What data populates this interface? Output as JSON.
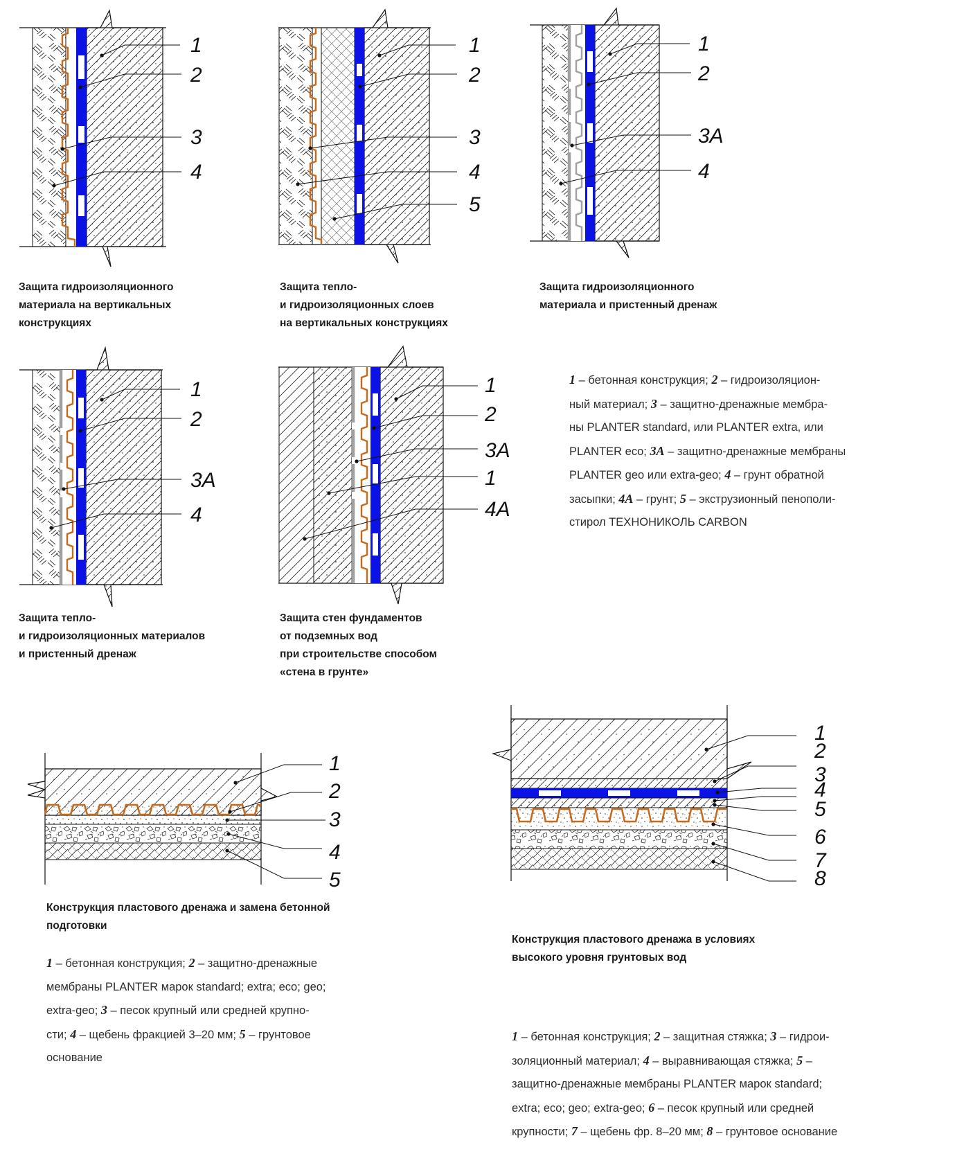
{
  "colors": {
    "waterproofing": "#0a12e6",
    "membrane": "#c76a1c",
    "drain_membrane": "#a0a0a0",
    "line": "#111111"
  },
  "fig1": {
    "labels": [
      "1",
      "2",
      "3",
      "4"
    ],
    "caption": [
      "Защита гидроизоляционного",
      "материала на вертикальных",
      "конструкциях"
    ]
  },
  "fig2": {
    "labels": [
      "1",
      "2",
      "3",
      "4",
      "5"
    ],
    "caption": [
      "Защита тепло-",
      "и гидроизоляционных слоев",
      "на вертикальных конструкциях"
    ]
  },
  "fig3": {
    "labels": [
      "1",
      "2",
      "3A",
      "4"
    ],
    "caption": [
      "Защита гидроизоляционного",
      "материала и пристенный дренаж"
    ]
  },
  "fig4": {
    "labels": [
      "1",
      "2",
      "3A",
      "4"
    ],
    "caption": [
      "Защита тепло-",
      "и гидроизоляционных материалов",
      "и пристенный дренаж"
    ]
  },
  "fig5": {
    "labels": [
      "1",
      "2",
      "3A",
      "1",
      "4A"
    ],
    "caption": [
      "Защита стен фундаментов",
      "от подземных вод",
      "при строительстве способом",
      "«стена в грунте»"
    ]
  },
  "legend_vertical": [
    {
      "n": "1",
      "t": " – бетонная конструкция; "
    },
    {
      "n": "2",
      "t": " – гидроизоляцион-"
    },
    {
      "t": "ный материал; "
    },
    {
      "n": "3",
      "t": " – защитно-дренажные мембра-"
    },
    {
      "t": "ны PLANTER standard, или PLANTER extra, или"
    },
    {
      "t": "PLANTER eco; "
    },
    {
      "n": "3А",
      "t": " – защитно-дренажные мембраны"
    },
    {
      "t": "PLANTER geo или extra-geo; "
    },
    {
      "n": "4",
      "t": " – грунт обратной"
    },
    {
      "t": "засыпки; "
    },
    {
      "n": "4А",
      "t": " – грунт; "
    },
    {
      "n": "5",
      "t": " – экструзионный пенополи-"
    },
    {
      "t": "стирол ТЕХНОНИКОЛЬ CARBON"
    }
  ],
  "fig6": {
    "labels": [
      "1",
      "2",
      "3",
      "4",
      "5"
    ],
    "caption": [
      "Конструкция пластового дренажа и замена бетонной",
      "подготовки"
    ],
    "legend": [
      {
        "n": "1",
        "t": " – бетонная конструкция; "
      },
      {
        "n": "2",
        "t": " – защитно-дренажные"
      },
      {
        "t": "мембраны PLANTER марок standard; extra; eco; geo;"
      },
      {
        "t": "extra-geo; "
      },
      {
        "n": "3",
        "t": " – песок крупный или средней крупно-"
      },
      {
        "t": "сти; "
      },
      {
        "n": "4",
        "t": " – щебень фракцией 3–20 мм; "
      },
      {
        "n": "5",
        "t": " – грунтовое"
      },
      {
        "t": "основание"
      }
    ]
  },
  "fig7": {
    "labels": [
      "1",
      "2",
      "3",
      "4",
      "5",
      "6",
      "7",
      "8"
    ],
    "caption": [
      "Конструкция пластового дренажа в условиях",
      "высокого уровня грунтовых вод"
    ],
    "legend": [
      {
        "n": "1",
        "t": " – бетонная конструкция; "
      },
      {
        "n": "2",
        "t": " – защитная стяжка; "
      },
      {
        "n": "3",
        "t": " – гидрои-"
      },
      {
        "t": "золяционный материал; "
      },
      {
        "n": "4",
        "t": " – выравнивающая стяжка; "
      },
      {
        "n": "5",
        "t": " –"
      },
      {
        "t": "защитно-дренажные мембраны PLANTER марок standard;"
      },
      {
        "t": "extra; eco; geo; extra-geo; "
      },
      {
        "n": "6",
        "t": " – песок крупный или средней"
      },
      {
        "t": "крупности; "
      },
      {
        "n": "7",
        "t": " – щебень фр. 8–20 мм; "
      },
      {
        "n": "8",
        "t": " – грунтовое основание"
      }
    ]
  }
}
